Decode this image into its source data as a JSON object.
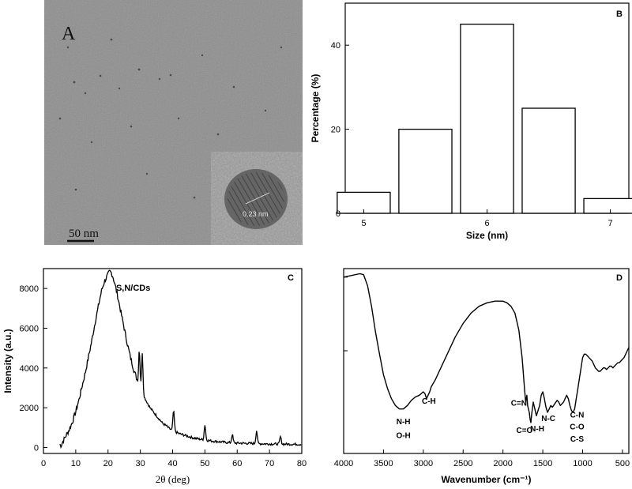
{
  "panel_a": {
    "letter": "A",
    "scale_bar_label": "50 nm",
    "inset_label": "0.23 nm",
    "colors": {
      "background": "#8c8c8c",
      "inset": "#9a9a9a"
    }
  },
  "chart_data": [
    {
      "id": "B",
      "type": "bar",
      "letter": "B",
      "title": "",
      "xlabel": "Size (nm)",
      "ylabel": "Percentage (%)",
      "categories": [
        "5",
        "",
        "6",
        "",
        "7"
      ],
      "x_positions": [
        5.0,
        5.5,
        6.0,
        6.5,
        7.0
      ],
      "values": [
        5,
        20,
        45,
        25,
        3.5
      ],
      "xlim": [
        4.85,
        7.15
      ],
      "ylim": [
        0,
        50
      ],
      "xticks": [
        5,
        6,
        7
      ],
      "yticks": [
        0,
        20,
        40
      ],
      "grid": false,
      "bar_color": "#ffffff",
      "edge_color": "#000000"
    },
    {
      "id": "C",
      "type": "line",
      "letter": "C",
      "title": "",
      "xlabel": "2θ (deg)",
      "ylabel": "Intensity (a.u.)",
      "series": [
        {
          "name": "S,N/CDs",
          "x": [
            5,
            5.5,
            6,
            7,
            8,
            9,
            10,
            11,
            12,
            13,
            14,
            15,
            16,
            17,
            18,
            19,
            20,
            20.5,
            21,
            21.5,
            22,
            23,
            24,
            25,
            26,
            27,
            28,
            29,
            30,
            31,
            32,
            33,
            34,
            35,
            36,
            37,
            38,
            39,
            40,
            42,
            44,
            46,
            48,
            50,
            52,
            55,
            58,
            60,
            65,
            70,
            75,
            80
          ],
          "y": [
            150,
            100,
            300,
            600,
            900,
            1300,
            1800,
            2400,
            3100,
            3800,
            4600,
            5400,
            6300,
            7100,
            7900,
            8400,
            8700,
            8850,
            8800,
            8600,
            8300,
            7600,
            6800,
            6000,
            5200,
            4500,
            3900,
            3400,
            2900,
            2600,
            2300,
            2000,
            1800,
            1600,
            1400,
            1200,
            1100,
            950,
            850,
            700,
            600,
            500,
            430,
            380,
            330,
            280,
            240,
            220,
            200,
            180,
            170,
            160
          ]
        }
      ],
      "peaks": [
        {
          "x": 29.7,
          "y": 4950
        },
        {
          "x": 30.6,
          "y": 4700
        },
        {
          "x": 40.3,
          "y": 1850
        },
        {
          "x": 50.0,
          "y": 1150
        },
        {
          "x": 58.5,
          "y": 650
        },
        {
          "x": 66.0,
          "y": 850
        },
        {
          "x": 73.4,
          "y": 550
        }
      ],
      "xlim": [
        0,
        80
      ],
      "ylim": [
        -300,
        9000
      ],
      "xticks": [
        0,
        10,
        20,
        30,
        40,
        50,
        60,
        70,
        80
      ],
      "yticks": [
        0,
        2000,
        4000,
        6000,
        8000
      ],
      "grid": false,
      "line_color": "#000000"
    },
    {
      "id": "D",
      "type": "line",
      "letter": "D",
      "title": "",
      "xlabel": "Wavenumber (cm⁻¹)",
      "ylabel": "",
      "x_reversed": true,
      "series": [
        {
          "name": "",
          "x": [
            4000,
            3900,
            3800,
            3750,
            3700,
            3650,
            3600,
            3550,
            3500,
            3450,
            3400,
            3350,
            3300,
            3250,
            3200,
            3150,
            3100,
            3050,
            3000,
            2980,
            2960,
            2940,
            2920,
            2900,
            2850,
            2800,
            2700,
            2600,
            2500,
            2400,
            2300,
            2200,
            2100,
            2000,
            1950,
            1900,
            1850,
            1800,
            1760,
            1730,
            1715,
            1700,
            1690,
            1680,
            1670,
            1660,
            1650,
            1640,
            1620,
            1600,
            1580,
            1560,
            1540,
            1520,
            1500,
            1480,
            1460,
            1440,
            1420,
            1400,
            1380,
            1350,
            1320,
            1300,
            1280,
            1260,
            1240,
            1220,
            1200,
            1180,
            1160,
            1140,
            1120,
            1100,
            1080,
            1060,
            1040,
            1020,
            1000,
            980,
            960,
            940,
            920,
            900,
            880,
            860,
            840,
            820,
            800,
            780,
            760,
            740,
            720,
            700,
            680,
            660,
            640,
            620,
            600,
            580,
            560,
            540,
            520,
            500,
            480,
            460,
            440,
            420
          ],
          "y": [
            0.95,
            0.96,
            0.97,
            0.965,
            0.9,
            0.78,
            0.63,
            0.5,
            0.38,
            0.3,
            0.24,
            0.2,
            0.18,
            0.18,
            0.2,
            0.23,
            0.25,
            0.26,
            0.28,
            0.27,
            0.24,
            0.26,
            0.28,
            0.31,
            0.35,
            0.4,
            0.5,
            0.6,
            0.68,
            0.74,
            0.78,
            0.8,
            0.81,
            0.81,
            0.8,
            0.78,
            0.74,
            0.64,
            0.48,
            0.3,
            0.22,
            0.26,
            0.2,
            0.18,
            0.16,
            0.12,
            0.1,
            0.15,
            0.22,
            0.18,
            0.14,
            0.17,
            0.2,
            0.26,
            0.28,
            0.24,
            0.19,
            0.16,
            0.18,
            0.2,
            0.19,
            0.21,
            0.23,
            0.22,
            0.2,
            0.21,
            0.22,
            0.24,
            0.26,
            0.24,
            0.2,
            0.17,
            0.16,
            0.18,
            0.24,
            0.3,
            0.36,
            0.42,
            0.48,
            0.5,
            0.5,
            0.49,
            0.48,
            0.47,
            0.46,
            0.44,
            0.42,
            0.41,
            0.4,
            0.4,
            0.41,
            0.42,
            0.42,
            0.41,
            0.42,
            0.43,
            0.43,
            0.42,
            0.43,
            0.44,
            0.45,
            0.45,
            0.46,
            0.47,
            0.48,
            0.5,
            0.52,
            0.54
          ]
        }
      ],
      "annotations": [
        {
          "text": "N-H",
          "x": 3250,
          "y": 0.09
        },
        {
          "text": "O-H",
          "x": 3250,
          "y": 0.01
        },
        {
          "text": "C-H",
          "x": 2930,
          "y": 0.21
        },
        {
          "text": "C=N",
          "x": 1800,
          "y": 0.2
        },
        {
          "text": "C=O",
          "x": 1730,
          "y": 0.04
        },
        {
          "text": "N-H",
          "x": 1570,
          "y": 0.05
        },
        {
          "text": "N-C",
          "x": 1430,
          "y": 0.11
        },
        {
          "text": "C-N",
          "x": 1070,
          "y": 0.13
        },
        {
          "text": "C-O",
          "x": 1070,
          "y": 0.06
        },
        {
          "text": "C-S",
          "x": 1070,
          "y": -0.01
        }
      ],
      "xlim": [
        4000,
        420
      ],
      "ylim": [
        -0.08,
        1.0
      ],
      "xticks": [
        4000,
        3500,
        3000,
        2500,
        2000,
        1500,
        1000,
        500
      ],
      "yticks": [],
      "y_minor_ticks": [
        0.52,
        0.95
      ],
      "grid": false,
      "line_color": "#000000"
    }
  ]
}
